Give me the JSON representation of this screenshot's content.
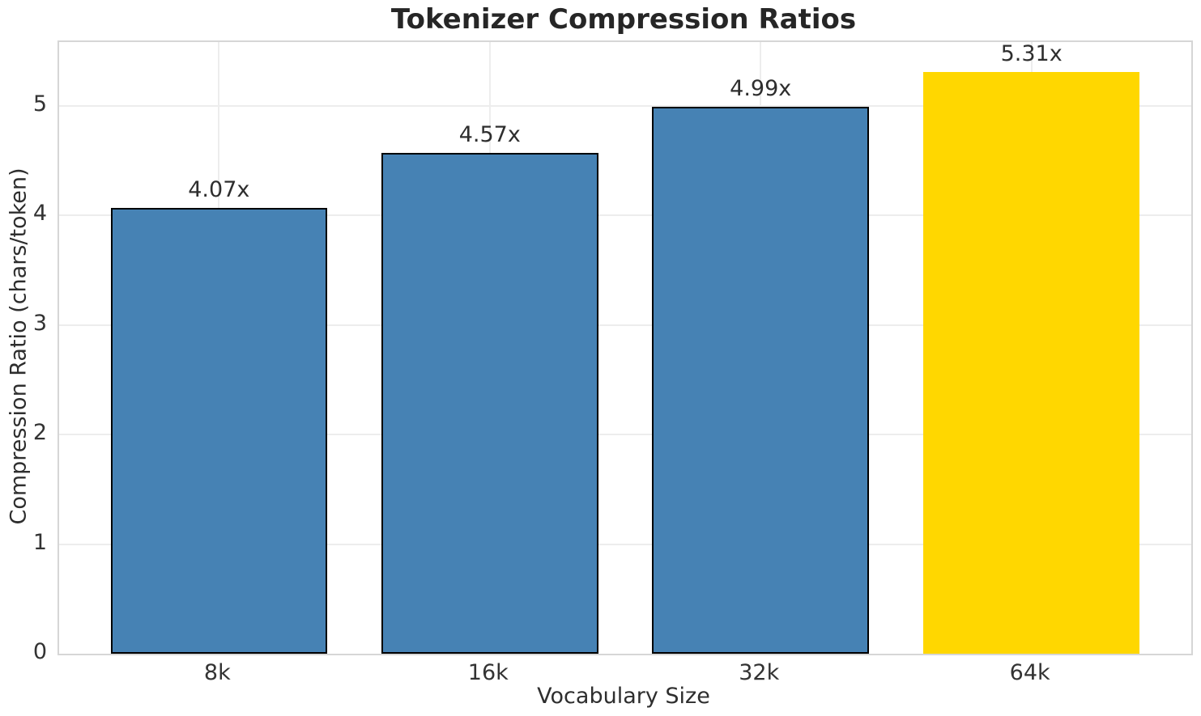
{
  "chart_data": {
    "type": "bar",
    "title": "Tokenizer Compression Ratios",
    "xlabel": "Vocabulary Size",
    "ylabel": "Compression Ratio (chars/token)",
    "categories": [
      "8k",
      "16k",
      "32k",
      "64k"
    ],
    "values": [
      4.07,
      4.57,
      4.99,
      5.31
    ],
    "bar_labels": [
      "4.07x",
      "4.57x",
      "4.99x",
      "5.31x"
    ],
    "yticks": [
      0,
      1,
      2,
      3,
      4,
      5
    ],
    "ylim": [
      0,
      5.58
    ],
    "grid": true,
    "legend_position": "none",
    "colors": {
      "bar_default": "#4682B4",
      "bar_highlight": "#FFD700",
      "bar_edge": "#000000",
      "gridline": "#ededed",
      "spine": "#d6d6d6",
      "text": "#2e2e2e",
      "background": "#ffffff"
    },
    "bar_colors": [
      "#4682B4",
      "#4682B4",
      "#4682B4",
      "#FFD700"
    ],
    "bar_edge_colors": [
      "#000000",
      "#000000",
      "#000000",
      "none"
    ]
  }
}
